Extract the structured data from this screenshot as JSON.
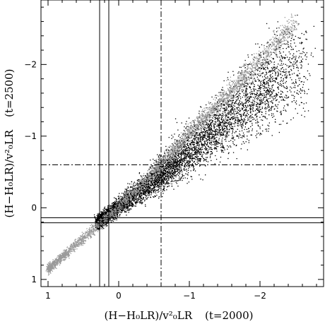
{
  "chart_data": {
    "type": "scatter",
    "title": "",
    "xlabel": "(H−H₀LR)/v²₀LR",
    "xlabel_extra": "(t=2000)",
    "ylabel": "(H−H₀LR)/v²₀LR",
    "ylabel_extra": "(t=2500)",
    "xlim": [
      1.1,
      -2.9
    ],
    "ylim": [
      1.1,
      -2.9
    ],
    "x_reversed": true,
    "y_reversed": true,
    "x_ticks": [
      1,
      0,
      -1,
      -2
    ],
    "y_ticks": [
      1,
      0,
      -1,
      -2
    ],
    "x_tick_labels": [
      "1",
      "0",
      "−1",
      "−2"
    ],
    "y_tick_labels": [
      "1",
      "0",
      "−1",
      "−2"
    ],
    "grid": false,
    "vertical_lines": [
      {
        "x": 0.27,
        "style": "solid"
      },
      {
        "x": 0.14,
        "style": "solid"
      },
      {
        "x": -0.6,
        "style": "dashdot"
      }
    ],
    "horizontal_lines": [
      {
        "y": 0.14,
        "style": "solid"
      },
      {
        "y": 0.21,
        "style": "solid"
      },
      {
        "y": -0.6,
        "style": "dashdot"
      }
    ],
    "series": [
      {
        "color": "#000000",
        "ridge": {
          "x": [
            0.3,
            -0.5,
            -1.0,
            -1.5,
            -2.0,
            -2.5
          ],
          "y": [
            0.2,
            -0.4,
            -0.8,
            -1.2,
            -1.6,
            -2.0
          ]
        }
      },
      {
        "color": "#9a9a9a",
        "ridge": {
          "x": [
            1.0,
            0.3,
            -0.5,
            -1.0,
            -1.5,
            -2.0,
            -2.5
          ],
          "y": [
            0.85,
            0.25,
            -0.5,
            -1.05,
            -1.55,
            -2.05,
            -2.6
          ]
        }
      }
    ],
    "colors": {
      "foreground": "#000000",
      "gray_series": "#9a9a9a",
      "background": "#ffffff"
    }
  }
}
